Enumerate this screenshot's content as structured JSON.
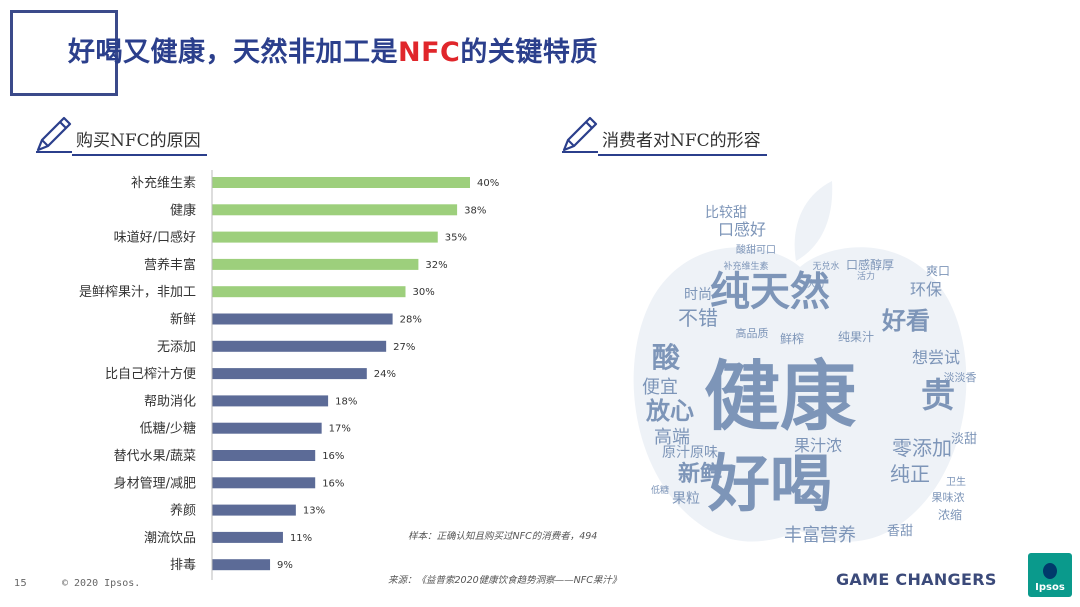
{
  "header": {
    "title_part1": "好喝又健康，天然非加工是",
    "title_highlight": "NFC",
    "title_part2": "的关键特质"
  },
  "left_section": {
    "label": "购买NFC的原因"
  },
  "right_section": {
    "label": "消费者对NFC的形容"
  },
  "chart_data": {
    "type": "bar",
    "orientation": "horizontal",
    "categories": [
      "补充维生素",
      "健康",
      "味道好/口感好",
      "营养丰富",
      "是鲜榨果汁，非加工",
      "新鲜",
      "无添加",
      "比自己榨汁方便",
      "帮助消化",
      "低糖/少糖",
      "替代水果/蔬菜",
      "身材管理/减肥",
      "养颜",
      "潮流饮品",
      "排毒"
    ],
    "values": [
      40,
      38,
      35,
      32,
      30,
      28,
      27,
      24,
      18,
      17,
      16,
      16,
      13,
      11,
      9
    ],
    "value_labels": [
      "40%",
      "38%",
      "35%",
      "32%",
      "30%",
      "28%",
      "27%",
      "24%",
      "18%",
      "17%",
      "16%",
      "16%",
      "13%",
      "11%",
      "9%"
    ],
    "highlight_count": 5,
    "colors": {
      "highlight": "#9dcf7c",
      "normal": "#5c6b97"
    },
    "xlim": [
      0,
      40
    ]
  },
  "word_cloud": {
    "color": "#7d95b8",
    "words": [
      {
        "text": "健康",
        "weight": 10
      },
      {
        "text": "好喝",
        "weight": 8
      },
      {
        "text": "纯天然",
        "weight": 6
      },
      {
        "text": "贵",
        "weight": 4
      },
      {
        "text": "酸",
        "weight": 3.5
      },
      {
        "text": "好看",
        "weight": 3
      },
      {
        "text": "放心",
        "weight": 3
      },
      {
        "text": "新鲜",
        "weight": 3
      },
      {
        "text": "零添加",
        "weight": 2.6
      },
      {
        "text": "丰富营养",
        "weight": 2.6
      },
      {
        "text": "纯正",
        "weight": 2.6
      },
      {
        "text": "不错",
        "weight": 2.4
      },
      {
        "text": "高端",
        "weight": 2.2
      },
      {
        "text": "便宜",
        "weight": 2.2
      },
      {
        "text": "想尝试",
        "weight": 2.2
      },
      {
        "text": "果汁浓",
        "weight": 2.2
      },
      {
        "text": "环保",
        "weight": 2.2
      },
      {
        "text": "口感好",
        "weight": 2.2
      },
      {
        "text": "比较甜",
        "weight": 2.2
      },
      {
        "text": "时尚",
        "weight": 2
      },
      {
        "text": "原汁原味",
        "weight": 2
      },
      {
        "text": "果粒",
        "weight": 2
      },
      {
        "text": "鲜榨",
        "weight": 1.8
      },
      {
        "text": "纯果汁",
        "weight": 1.8
      },
      {
        "text": "口感醇厚",
        "weight": 1.8
      },
      {
        "text": "香甜",
        "weight": 1.6
      },
      {
        "text": "淡甜",
        "weight": 1.6
      },
      {
        "text": "浓缩",
        "weight": 1.5
      },
      {
        "text": "爽口",
        "weight": 1.5
      },
      {
        "text": "果味浓",
        "weight": 1.4
      },
      {
        "text": "淡淡香",
        "weight": 1.3
      },
      {
        "text": "高品质",
        "weight": 1.3
      },
      {
        "text": "酸甜可口",
        "weight": 1.2
      },
      {
        "text": "卫生",
        "weight": 1.2
      },
      {
        "text": "无兑水",
        "weight": 1.1
      },
      {
        "text": "补充维生素",
        "weight": 1
      },
      {
        "text": "大方",
        "weight": 1
      },
      {
        "text": "活力",
        "weight": 1
      },
      {
        "text": "低糖",
        "weight": 1
      }
    ]
  },
  "footer": {
    "sample_note": "样本：正确认知且购买过NFC的消费者，494",
    "source_note": "来源：《益普索2020健康饮食趋势洞察——NFC果汁》",
    "page_number": "15",
    "copyright": "© 2020 Ipsos.",
    "brand_tag": "GAME CHANGERS",
    "logo_text": "Ipsos"
  }
}
